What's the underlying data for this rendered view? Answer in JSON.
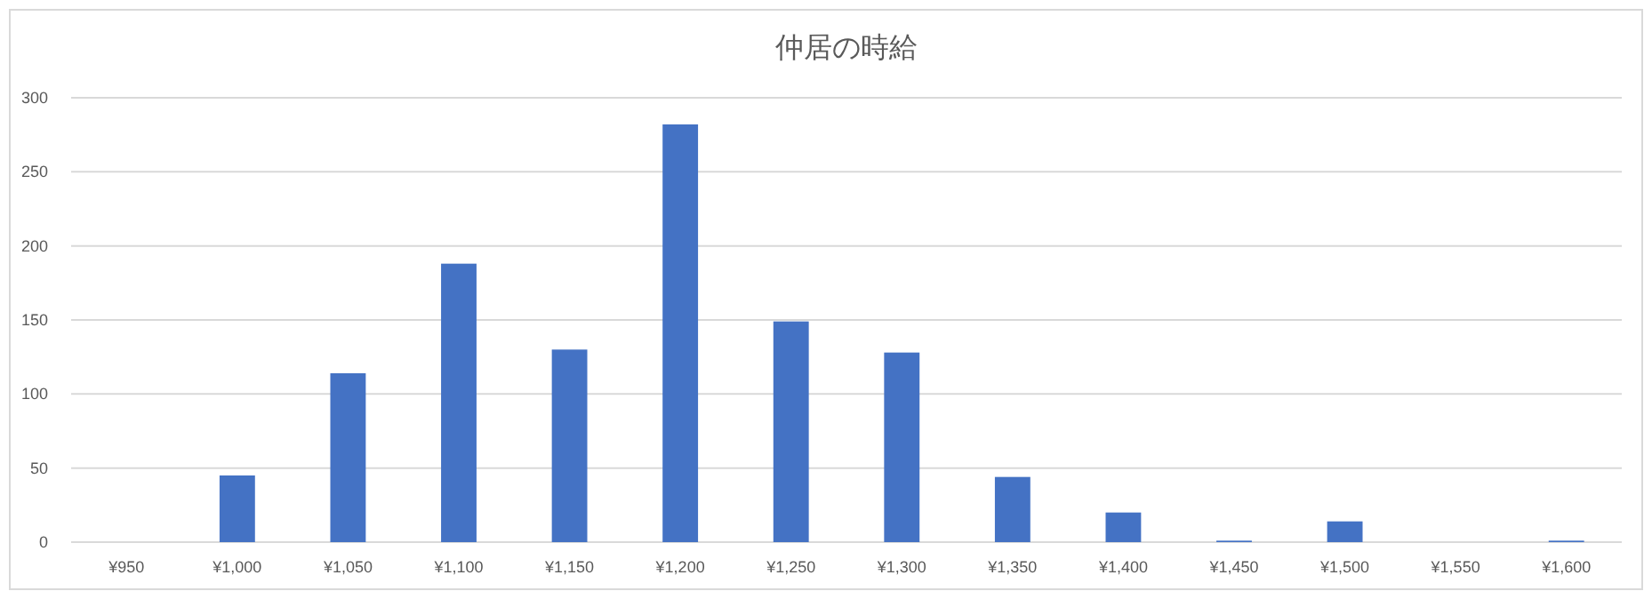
{
  "chart_data": {
    "type": "bar",
    "title": "仲居の時給",
    "categories": [
      "¥950",
      "¥1,000",
      "¥1,050",
      "¥1,100",
      "¥1,150",
      "¥1,200",
      "¥1,250",
      "¥1,300",
      "¥1,350",
      "¥1,400",
      "¥1,450",
      "¥1,500",
      "¥1,550",
      "¥1,600"
    ],
    "values": [
      0,
      45,
      114,
      188,
      130,
      282,
      149,
      128,
      44,
      20,
      1,
      14,
      0,
      1
    ],
    "color": "#4472c4",
    "ylim": [
      0,
      300
    ],
    "yticks": [
      0,
      50,
      100,
      150,
      200,
      250,
      300
    ],
    "grid": "y"
  }
}
